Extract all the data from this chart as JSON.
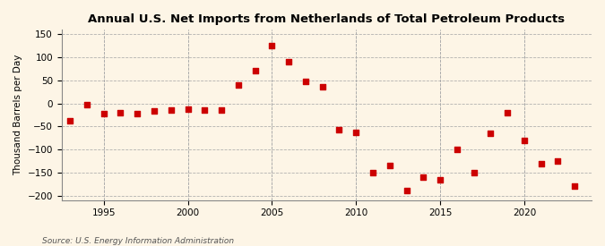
{
  "title": "Annual U.S. Net Imports from Netherlands of Total Petroleum Products",
  "ylabel": "Thousand Barrels per Day",
  "source": "Source: U.S. Energy Information Administration",
  "background_color": "#fdf5e6",
  "marker_color": "#cc0000",
  "years": [
    1993,
    1994,
    1995,
    1996,
    1997,
    1998,
    1999,
    2000,
    2001,
    2002,
    2003,
    2004,
    2005,
    2006,
    2007,
    2008,
    2009,
    2010,
    2011,
    2012,
    2013,
    2014,
    2015,
    2016,
    2017,
    2018,
    2019,
    2020,
    2021,
    2022,
    2023
  ],
  "values": [
    -38,
    -2,
    -22,
    -20,
    -22,
    -17,
    -15,
    -13,
    -15,
    -14,
    40,
    72,
    125,
    91,
    47,
    36,
    -56,
    -62,
    -150,
    -135,
    -190,
    -160,
    -165,
    -100,
    -150,
    -65,
    -20,
    -80,
    -130,
    -125,
    -180
  ],
  "ylim": [
    -210,
    160
  ],
  "yticks": [
    -200,
    -150,
    -100,
    -50,
    0,
    50,
    100,
    150
  ],
  "xlim": [
    1992.5,
    2024
  ],
  "xticks": [
    1995,
    2000,
    2005,
    2010,
    2015,
    2020
  ]
}
